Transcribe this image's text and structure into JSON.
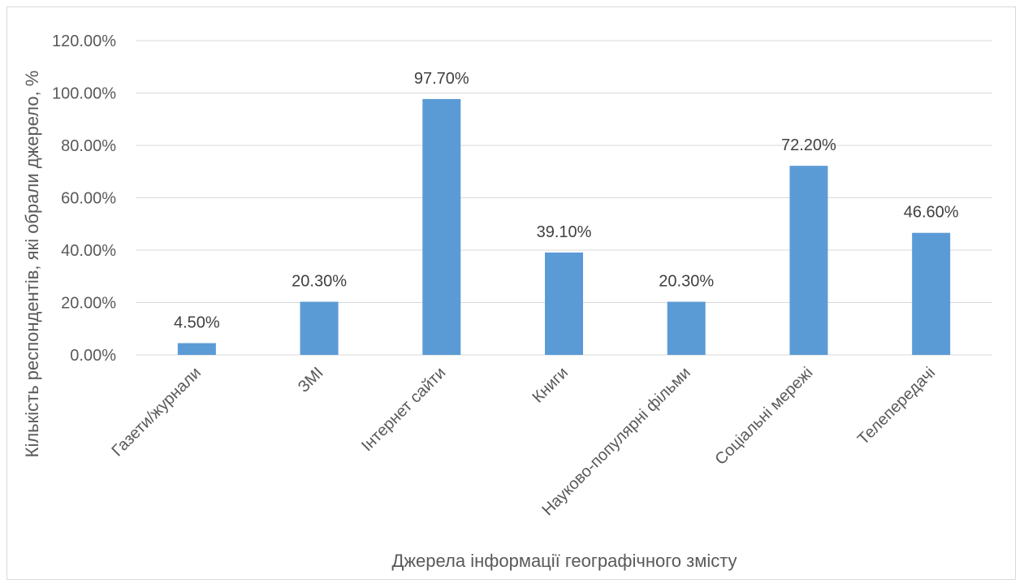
{
  "chart_data": {
    "type": "bar",
    "categories": [
      "Газети/журнали",
      "ЗМІ",
      "Інтернет сайти",
      "Книги",
      "Науково-популярні фільми",
      "Соціальні мережі",
      "Телепередачі"
    ],
    "values": [
      4.5,
      20.3,
      97.7,
      39.1,
      20.3,
      72.2,
      46.6
    ],
    "data_labels": [
      "4.50%",
      "20.30%",
      "97.70%",
      "39.10%",
      "20.30%",
      "72.20%",
      "46.60%"
    ],
    "y_ticks": [
      "0.00%",
      "20.00%",
      "40.00%",
      "60.00%",
      "80.00%",
      "100.00%",
      "120.00%"
    ],
    "ylim": [
      0,
      120
    ],
    "xlabel": "Джерела інформації географічного змісту",
    "ylabel": "Кількість респондентів, які обрали джерело, %",
    "grid": true,
    "legend": "none",
    "bar_color": "#5b9bd5",
    "grid_color": "#d9d9d9"
  }
}
